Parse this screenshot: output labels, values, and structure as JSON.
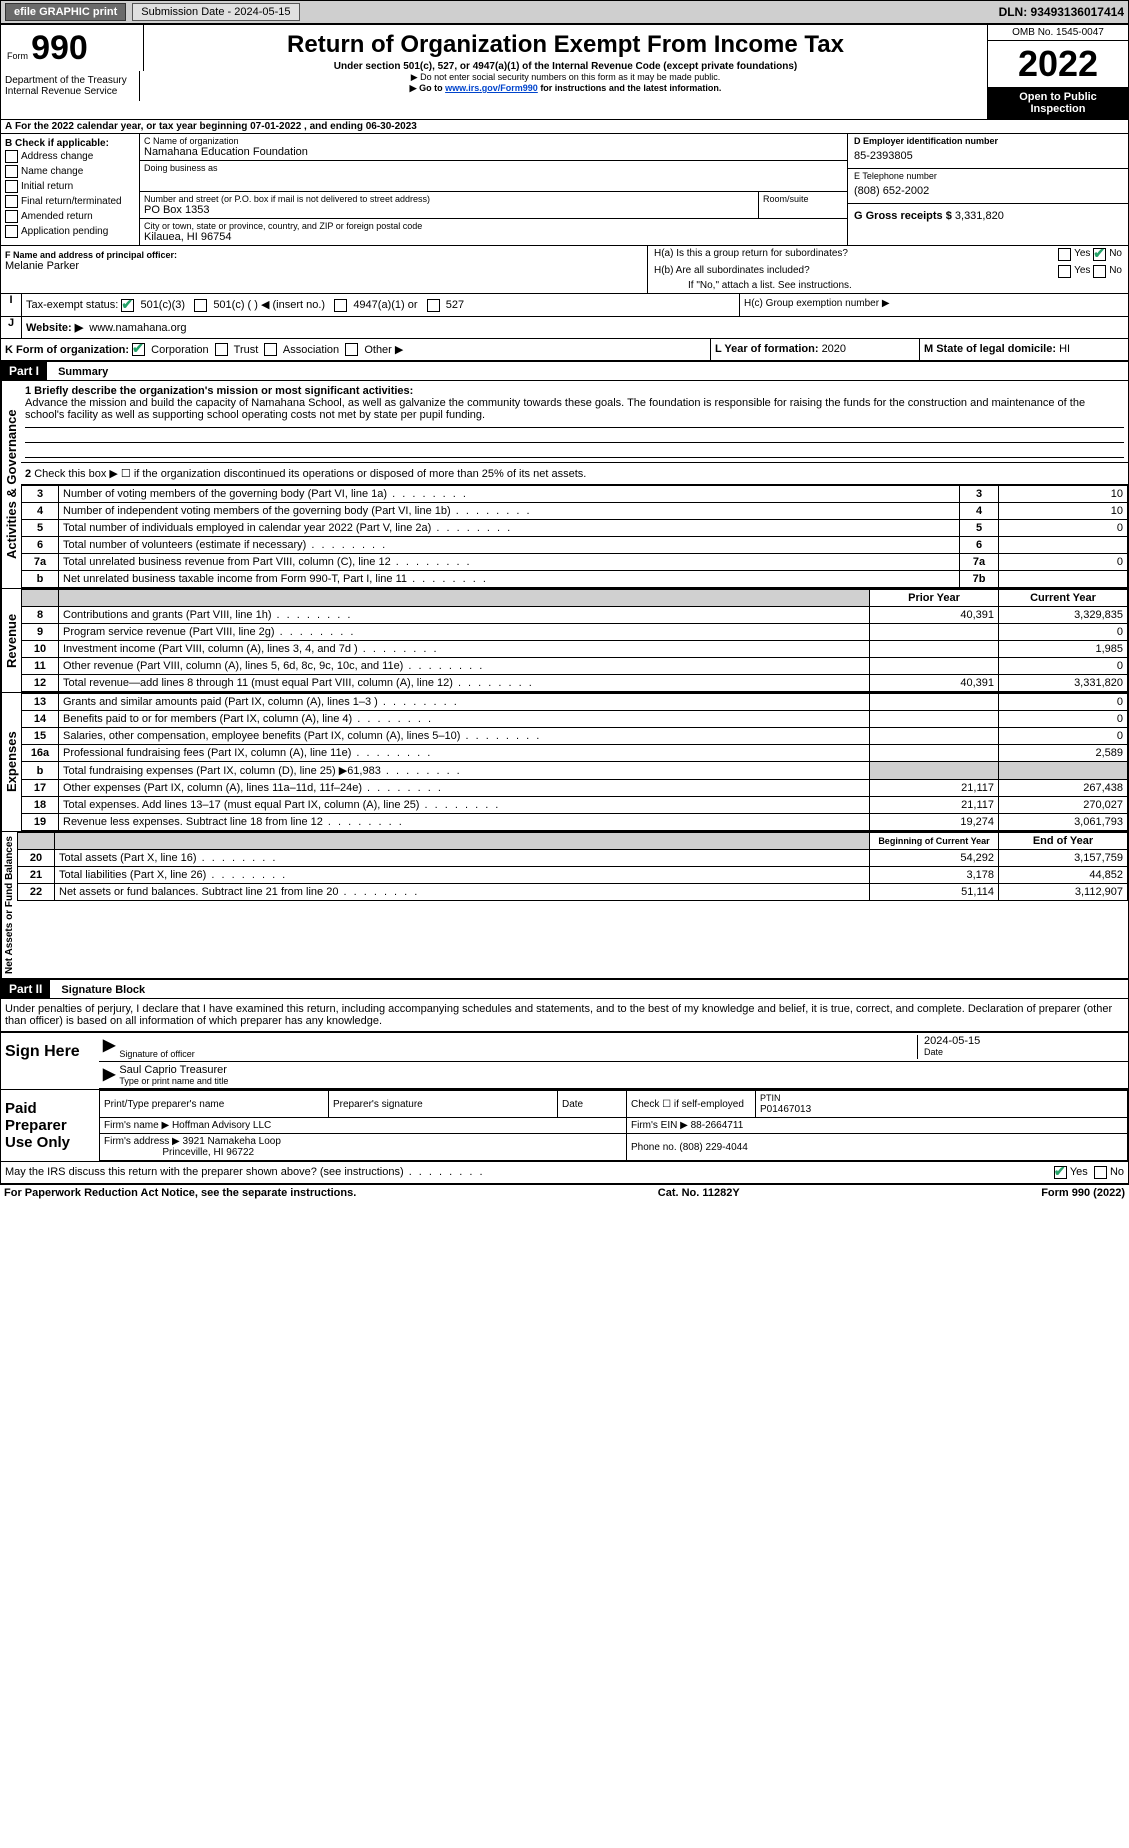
{
  "topbar": {
    "efile_btn": "efile GRAPHIC print",
    "submission_label": "Submission Date - 2024-05-15",
    "dln": "DLN: 93493136017414"
  },
  "header": {
    "form_prefix": "Form",
    "form_number": "990",
    "dept": "Department of the Treasury",
    "irs": "Internal Revenue Service",
    "title": "Return of Organization Exempt From Income Tax",
    "subtitle": "Under section 501(c), 527, or 4947(a)(1) of the Internal Revenue Code (except private foundations)",
    "note1": "▶ Do not enter social security numbers on this form as it may be made public.",
    "note2_prefix": "▶ Go to ",
    "note2_link": "www.irs.gov/Form990",
    "note2_suffix": " for instructions and the latest information.",
    "omb": "OMB No. 1545-0047",
    "year": "2022",
    "open": "Open to Public Inspection"
  },
  "period": {
    "text_a": "For the 2022 calendar year, or tax year beginning ",
    "begin": "07-01-2022",
    "text_b": " , and ending ",
    "end": "06-30-2023"
  },
  "boxB": {
    "label": "B Check if applicable:",
    "items": [
      "Address change",
      "Name change",
      "Initial return",
      "Final return/terminated",
      "Amended return",
      "Application pending"
    ]
  },
  "boxC": {
    "label": "C Name of organization",
    "name": "Namahana Education Foundation",
    "dba_label": "Doing business as",
    "street_label": "Number and street (or P.O. box if mail is not delivered to street address)",
    "room_label": "Room/suite",
    "street": "PO Box 1353",
    "city_label": "City or town, state or province, country, and ZIP or foreign postal code",
    "city": "Kilauea, HI  96754"
  },
  "boxD": {
    "label": "D Employer identification number",
    "value": "85-2393805"
  },
  "boxE": {
    "label": "E Telephone number",
    "value": "(808) 652-2002"
  },
  "boxG": {
    "label": "G Gross receipts $",
    "value": "3,331,820"
  },
  "boxF": {
    "label": "F  Name and address of principal officer:",
    "value": "Melanie Parker"
  },
  "boxH": {
    "a": "H(a)  Is this a group return for subordinates?",
    "b": "H(b)  Are all subordinates included?",
    "b_note": "If \"No,\" attach a list. See instructions.",
    "c": "H(c)  Group exemption number ▶",
    "yes": "Yes",
    "no": "No"
  },
  "boxI": {
    "label": "Tax-exempt status:",
    "opts": [
      "501(c)(3)",
      "501(c) (  ) ◀ (insert no.)",
      "4947(a)(1) or",
      "527"
    ]
  },
  "boxJ": {
    "label": "Website: ▶",
    "value": "www.namahana.org"
  },
  "boxK": {
    "label": "K Form of organization:",
    "opts": [
      "Corporation",
      "Trust",
      "Association",
      "Other ▶"
    ]
  },
  "boxL": {
    "label": "L Year of formation: ",
    "value": "2020"
  },
  "boxM": {
    "label": "M State of legal domicile: ",
    "value": "HI"
  },
  "partI": {
    "header": "Part I",
    "title": "Summary",
    "side_ag": "Activities & Governance",
    "side_rev": "Revenue",
    "side_exp": "Expenses",
    "side_net": "Net Assets or Fund Balances",
    "line1_label": "1 Briefly describe the organization's mission or most significant activities:",
    "line1_text": "Advance the mission and build the capacity of Namahana School, as well as galvanize the community towards these goals. The foundation is responsible for raising the funds for the construction and maintenance of the school's facility as well as supporting school operating costs not met by state per pupil funding.",
    "line2": "Check this box ▶ ☐ if the organization discontinued its operations or disposed of more than 25% of its net assets.",
    "rows_ag": [
      {
        "n": "3",
        "t": "Number of voting members of the governing body (Part VI, line 1a)",
        "box": "3",
        "v": "10"
      },
      {
        "n": "4",
        "t": "Number of independent voting members of the governing body (Part VI, line 1b)",
        "box": "4",
        "v": "10"
      },
      {
        "n": "5",
        "t": "Total number of individuals employed in calendar year 2022 (Part V, line 2a)",
        "box": "5",
        "v": "0"
      },
      {
        "n": "6",
        "t": "Total number of volunteers (estimate if necessary)",
        "box": "6",
        "v": ""
      },
      {
        "n": "7a",
        "t": "Total unrelated business revenue from Part VIII, column (C), line 12",
        "box": "7a",
        "v": "0"
      },
      {
        "n": "b",
        "t": "Net unrelated business taxable income from Form 990-T, Part I, line 11",
        "box": "7b",
        "v": ""
      }
    ],
    "col_prior": "Prior Year",
    "col_current": "Current Year",
    "rows_rev": [
      {
        "n": "8",
        "t": "Contributions and grants (Part VIII, line 1h)",
        "p": "40,391",
        "c": "3,329,835"
      },
      {
        "n": "9",
        "t": "Program service revenue (Part VIII, line 2g)",
        "p": "",
        "c": "0"
      },
      {
        "n": "10",
        "t": "Investment income (Part VIII, column (A), lines 3, 4, and 7d )",
        "p": "",
        "c": "1,985"
      },
      {
        "n": "11",
        "t": "Other revenue (Part VIII, column (A), lines 5, 6d, 8c, 9c, 10c, and 11e)",
        "p": "",
        "c": "0"
      },
      {
        "n": "12",
        "t": "Total revenue—add lines 8 through 11 (must equal Part VIII, column (A), line 12)",
        "p": "40,391",
        "c": "3,331,820"
      }
    ],
    "rows_exp": [
      {
        "n": "13",
        "t": "Grants and similar amounts paid (Part IX, column (A), lines 1–3 )",
        "p": "",
        "c": "0"
      },
      {
        "n": "14",
        "t": "Benefits paid to or for members (Part IX, column (A), line 4)",
        "p": "",
        "c": "0"
      },
      {
        "n": "15",
        "t": "Salaries, other compensation, employee benefits (Part IX, column (A), lines 5–10)",
        "p": "",
        "c": "0"
      },
      {
        "n": "16a",
        "t": "Professional fundraising fees (Part IX, column (A), line 11e)",
        "p": "",
        "c": "2,589"
      },
      {
        "n": "b",
        "t": "Total fundraising expenses (Part IX, column (D), line 25) ▶61,983",
        "p": "GRAY",
        "c": "GRAY"
      },
      {
        "n": "17",
        "t": "Other expenses (Part IX, column (A), lines 11a–11d, 11f–24e)",
        "p": "21,117",
        "c": "267,438"
      },
      {
        "n": "18",
        "t": "Total expenses. Add lines 13–17 (must equal Part IX, column (A), line 25)",
        "p": "21,117",
        "c": "270,027"
      },
      {
        "n": "19",
        "t": "Revenue less expenses. Subtract line 18 from line 12",
        "p": "19,274",
        "c": "3,061,793"
      }
    ],
    "col_begin": "Beginning of Current Year",
    "col_end": "End of Year",
    "rows_net": [
      {
        "n": "20",
        "t": "Total assets (Part X, line 16)",
        "p": "54,292",
        "c": "3,157,759"
      },
      {
        "n": "21",
        "t": "Total liabilities (Part X, line 26)",
        "p": "3,178",
        "c": "44,852"
      },
      {
        "n": "22",
        "t": "Net assets or fund balances. Subtract line 21 from line 20",
        "p": "51,114",
        "c": "3,112,907"
      }
    ]
  },
  "partII": {
    "header": "Part II",
    "title": "Signature Block",
    "declaration": "Under penalties of perjury, I declare that I have examined this return, including accompanying schedules and statements, and to the best of my knowledge and belief, it is true, correct, and complete. Declaration of preparer (other than officer) is based on all information of which preparer has any knowledge.",
    "sign_here": "Sign Here",
    "sig_officer": "Signature of officer",
    "date": "Date",
    "date_val": "2024-05-15",
    "name_title": "Saul Caprio  Treasurer",
    "type_name": "Type or print name and title",
    "paid_preparer": "Paid Preparer Use Only",
    "prep_name_label": "Print/Type preparer's name",
    "prep_sig_label": "Preparer's signature",
    "check_self": "Check ☐ if self-employed",
    "ptin_label": "PTIN",
    "ptin": "P01467013",
    "firm_name_label": "Firm's name    ▶",
    "firm_name": "Hoffman Advisory LLC",
    "firm_ein_label": "Firm's EIN ▶",
    "firm_ein": "88-2664711",
    "firm_addr_label": "Firm's address ▶",
    "firm_addr1": "3921 Namakeha Loop",
    "firm_addr2": "Princeville, HI  96722",
    "phone_label": "Phone no.",
    "phone": "(808) 229-4044",
    "discuss": "May the IRS discuss this return with the preparer shown above? (see instructions)",
    "yes": "Yes",
    "no": "No"
  },
  "footer": {
    "left": "For Paperwork Reduction Act Notice, see the separate instructions.",
    "mid": "Cat. No. 11282Y",
    "right": "Form 990 (2022)"
  }
}
